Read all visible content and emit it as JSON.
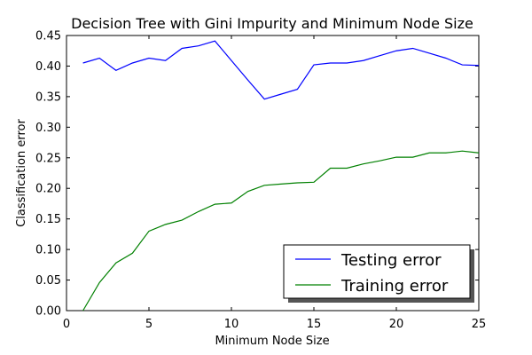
{
  "chart_data": {
    "type": "line",
    "title": "Decision Tree with Gini Impurity and Minimum Node Size",
    "xlabel": "Minimum Node Size",
    "ylabel": "Classification error",
    "xlim": [
      0,
      25
    ],
    "ylim": [
      0.0,
      0.45
    ],
    "xticks": [
      0,
      5,
      10,
      15,
      20,
      25
    ],
    "xtick_labels": [
      "0",
      "5",
      "10",
      "15",
      "20",
      "25"
    ],
    "yticks": [
      0.0,
      0.05,
      0.1,
      0.15,
      0.2,
      0.25,
      0.3,
      0.35,
      0.4,
      0.45
    ],
    "ytick_labels": [
      "0.00",
      "0.05",
      "0.10",
      "0.15",
      "0.20",
      "0.25",
      "0.30",
      "0.35",
      "0.40",
      "0.45"
    ],
    "grid": false,
    "legend_position": "bottom-right",
    "x": [
      1,
      2,
      3,
      4,
      5,
      6,
      7,
      8,
      9,
      10,
      11,
      12,
      13,
      14,
      15,
      16,
      17,
      18,
      19,
      20,
      21,
      22,
      23,
      24,
      25
    ],
    "series": [
      {
        "name": "Testing error",
        "color": "#0000ff",
        "values": [
          0.405,
          0.413,
          0.393,
          0.405,
          0.413,
          0.409,
          0.429,
          0.433,
          0.441,
          0.409,
          0.377,
          0.346,
          0.354,
          0.362,
          0.402,
          0.405,
          0.405,
          0.409,
          0.417,
          0.425,
          0.429,
          0.421,
          0.413,
          0.402,
          0.401
        ]
      },
      {
        "name": "Training error",
        "color": "#008000",
        "values": [
          0.0,
          0.046,
          0.078,
          0.094,
          0.13,
          0.141,
          0.148,
          0.162,
          0.174,
          0.176,
          0.195,
          0.205,
          0.207,
          0.209,
          0.21,
          0.233,
          0.233,
          0.24,
          0.245,
          0.251,
          0.251,
          0.258,
          0.258,
          0.261,
          0.258
        ]
      }
    ]
  }
}
